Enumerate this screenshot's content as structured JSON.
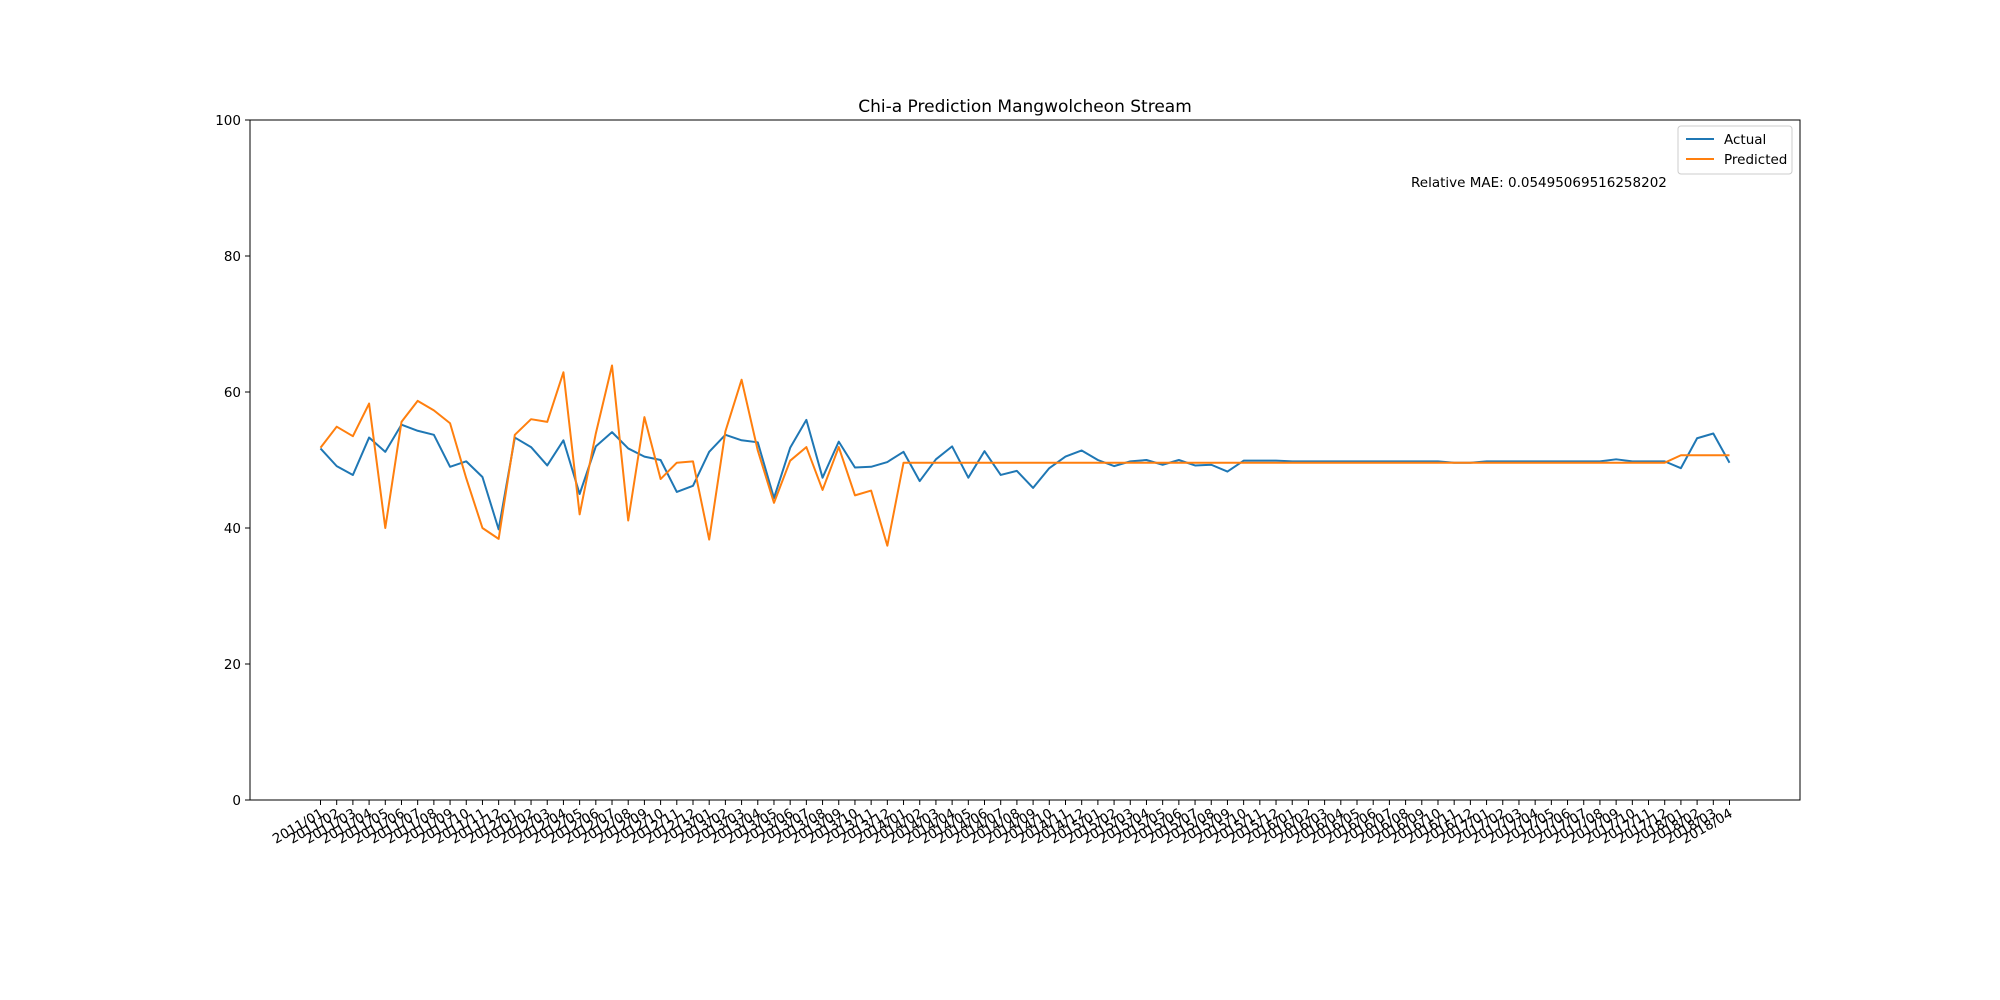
{
  "chart_data": {
    "type": "line",
    "title": "Chi-a Prediction Mangwolcheon Stream",
    "xlabel": "",
    "ylabel": "",
    "ylim": [
      0,
      100
    ],
    "yticks": [
      0,
      20,
      40,
      60,
      80,
      100
    ],
    "grid": false,
    "legend_position": "top-right",
    "annotation": "Relative MAE: 0.05495069516258202",
    "x": [
      "2011/01",
      "2011/02",
      "2011/03",
      "2011/04",
      "2011/05",
      "2011/06",
      "2011/07",
      "2011/08",
      "2011/09",
      "2011/10",
      "2011/11",
      "2011/12",
      "2012/01",
      "2012/02",
      "2012/03",
      "2012/04",
      "2012/05",
      "2012/06",
      "2012/07",
      "2012/08",
      "2012/09",
      "2012/10",
      "2012/11",
      "2012/12",
      "2013/01",
      "2013/02",
      "2013/03",
      "2013/04",
      "2013/05",
      "2013/06",
      "2013/07",
      "2013/08",
      "2013/09",
      "2013/10",
      "2013/11",
      "2013/12",
      "2014/01",
      "2014/02",
      "2014/03",
      "2014/04",
      "2014/05",
      "2014/06",
      "2014/07",
      "2014/08",
      "2014/09",
      "2014/10",
      "2014/11",
      "2014/12",
      "2015/01",
      "2015/02",
      "2015/03",
      "2015/04",
      "2015/05",
      "2015/06",
      "2015/07",
      "2015/08",
      "2015/09",
      "2015/10",
      "2015/11",
      "2015/12",
      "2016/01",
      "2016/02",
      "2016/03",
      "2016/04",
      "2016/05",
      "2016/06",
      "2016/07",
      "2016/08",
      "2016/09",
      "2016/10",
      "2016/11",
      "2016/12",
      "2017/01",
      "2017/02",
      "2017/03",
      "2017/04",
      "2017/05",
      "2017/06",
      "2017/07",
      "2017/08",
      "2017/09",
      "2017/10",
      "2017/11",
      "2017/12",
      "2018/01",
      "2018/02",
      "2018/03",
      "2018/04"
    ],
    "series": [
      {
        "name": "Actual",
        "color": "#1f77b4",
        "values": [
          51.7,
          49.1,
          47.8,
          53.3,
          51.2,
          55.2,
          54.3,
          53.7,
          49.0,
          49.8,
          47.5,
          39.8,
          53.3,
          51.9,
          49.2,
          52.9,
          45.0,
          52.0,
          54.1,
          51.7,
          50.5,
          50.0,
          45.3,
          46.2,
          51.2,
          53.7,
          52.9,
          52.6,
          44.4,
          51.8,
          55.9,
          47.4,
          52.7,
          48.9,
          49.0,
          49.7,
          51.2,
          46.9,
          50.1,
          52.0,
          47.4,
          51.3,
          47.8,
          48.4,
          45.9,
          48.8,
          50.5,
          51.4,
          50.0,
          49.1,
          49.8,
          50.0,
          49.3,
          50.0,
          49.2,
          49.3,
          48.3,
          49.9,
          49.9,
          49.9,
          49.8,
          49.8,
          49.8,
          49.8,
          49.8,
          49.8,
          49.8,
          49.8,
          49.8,
          49.8,
          49.6,
          49.6,
          49.8,
          49.8,
          49.8,
          49.8,
          49.8,
          49.8,
          49.8,
          49.8,
          50.1,
          49.8,
          49.8,
          49.8,
          48.8,
          53.2,
          53.9,
          49.6
        ]
      },
      {
        "name": "Predicted",
        "color": "#ff7f0e",
        "values": [
          51.8,
          54.9,
          53.5,
          58.3,
          40.0,
          55.6,
          58.7,
          57.3,
          55.4,
          47.3,
          40.0,
          38.4,
          53.7,
          56.0,
          55.6,
          62.9,
          42.0,
          53.9,
          63.9,
          41.1,
          56.3,
          47.2,
          49.6,
          49.8,
          38.3,
          54.2,
          61.8,
          51.4,
          43.7,
          49.9,
          51.9,
          45.6,
          51.9,
          44.8,
          45.5,
          37.4,
          49.6,
          49.6,
          49.6,
          49.6,
          49.6,
          49.6,
          49.6,
          49.6,
          49.6,
          49.6,
          49.6,
          49.6,
          49.6,
          49.6,
          49.6,
          49.6,
          49.6,
          49.6,
          49.6,
          49.6,
          49.6,
          49.6,
          49.6,
          49.6,
          49.6,
          49.6,
          49.6,
          49.6,
          49.6,
          49.6,
          49.6,
          49.6,
          49.6,
          49.6,
          49.6,
          49.6,
          49.6,
          49.6,
          49.6,
          49.6,
          49.6,
          49.6,
          49.6,
          49.6,
          49.6,
          49.6,
          49.6,
          49.6,
          50.7,
          50.7,
          50.7,
          50.7
        ]
      }
    ]
  }
}
